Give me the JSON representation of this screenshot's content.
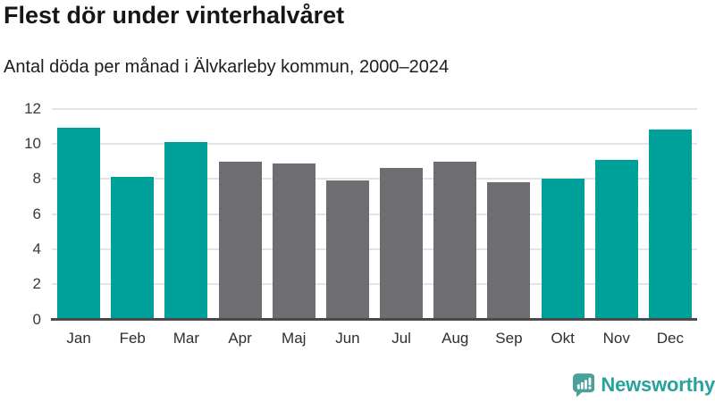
{
  "chart_data": {
    "type": "bar",
    "title": "Flest dör under vinterhalvåret",
    "subtitle": "Antal döda per månad i Älvkarleby kommun, 2000–2024",
    "categories": [
      "Jan",
      "Feb",
      "Mar",
      "Apr",
      "Maj",
      "Jun",
      "Jul",
      "Aug",
      "Sep",
      "Okt",
      "Nov",
      "Dec"
    ],
    "values": [
      10.9,
      8.1,
      10.1,
      9.0,
      8.9,
      7.9,
      8.6,
      9.0,
      7.8,
      8.0,
      9.1,
      10.8
    ],
    "groups": [
      "winter",
      "winter",
      "winter",
      "summer",
      "summer",
      "summer",
      "summer",
      "summer",
      "summer",
      "winter",
      "winter",
      "winter"
    ],
    "xlabel": "",
    "ylabel": "",
    "ylim": [
      0,
      12
    ],
    "yticks": [
      0,
      2,
      4,
      6,
      8,
      10,
      12
    ],
    "grid": true,
    "legend_position": "none",
    "colors": {
      "winter": "#00a09a",
      "summer": "#6d6d72",
      "gridline": "#e4e4e4",
      "axis": "#4a4a4a"
    }
  },
  "branding": {
    "name": "Newsworthy",
    "icon_color": "#4aa09a",
    "text_color": "#27a29b"
  }
}
